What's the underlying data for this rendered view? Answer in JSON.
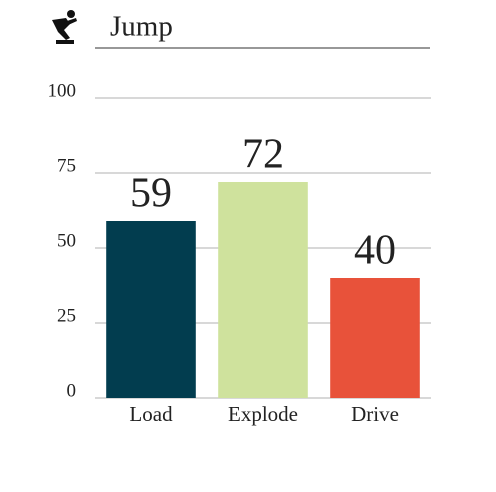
{
  "chart_data": {
    "type": "bar",
    "title": "Jump",
    "categories": [
      "Load",
      "Explode",
      "Drive"
    ],
    "values": [
      59,
      72,
      40
    ],
    "colors": [
      "#023d4f",
      "#cfe29d",
      "#e8523a"
    ],
    "ylim": [
      0,
      100
    ],
    "yticks": [
      0,
      25,
      50,
      75,
      100
    ],
    "grid": true
  }
}
